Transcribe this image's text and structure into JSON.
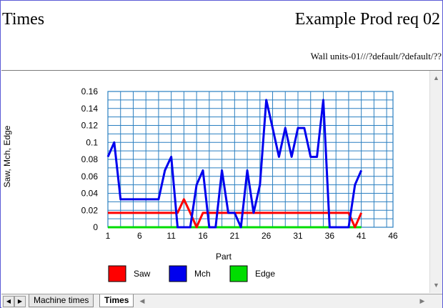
{
  "header": {
    "title_left": "Times",
    "title_right": "Example Prod req 02",
    "subtitle": "Wall units-01///?default/?default/??"
  },
  "tabs": [
    {
      "label": "Machine times",
      "active": false
    },
    {
      "label": "Times",
      "active": true
    }
  ],
  "colors": {
    "grid": "#2a7fc0",
    "saw": "#ff0000",
    "mch": "#0000ee",
    "edge": "#00dd00"
  },
  "chart_data": {
    "type": "line",
    "xlabel": "Part",
    "ylabel": "Saw, Mch, Edge",
    "xlim": [
      1,
      46
    ],
    "ylim": [
      0,
      0.16
    ],
    "xticks": [
      1,
      6,
      11,
      16,
      21,
      26,
      31,
      36,
      41,
      46
    ],
    "yticks": [
      0,
      0.02,
      0.04,
      0.06,
      0.08,
      0.1,
      0.12,
      0.14,
      0.16
    ],
    "ytick_labels": [
      "0",
      "0.02",
      "0.04",
      "0.06",
      "0.08",
      "0.1",
      "0.12",
      "0.14",
      "0.16"
    ],
    "grid": true,
    "legend_position": "bottom",
    "x": [
      1,
      2,
      3,
      4,
      5,
      6,
      7,
      8,
      9,
      10,
      11,
      12,
      13,
      14,
      15,
      16,
      17,
      18,
      19,
      20,
      21,
      22,
      23,
      24,
      25,
      26,
      27,
      28,
      29,
      30,
      31,
      32,
      33,
      34,
      35,
      36,
      37,
      38,
      39,
      40,
      41
    ],
    "series": [
      {
        "name": "Saw",
        "color": "#ff0000",
        "values": [
          0.017,
          0.017,
          0.017,
          0.017,
          0.017,
          0.017,
          0.017,
          0.017,
          0.017,
          0.017,
          0.017,
          0.017,
          0.033,
          0.017,
          0,
          0.017,
          0.017,
          0.017,
          0.017,
          0.017,
          0.017,
          0.017,
          0.017,
          0.017,
          0.017,
          0.017,
          0.017,
          0.017,
          0.017,
          0.017,
          0.017,
          0.017,
          0.017,
          0.017,
          0.017,
          0.017,
          0.017,
          0.017,
          0.017,
          0,
          0.017
        ]
      },
      {
        "name": "Mch",
        "color": "#0000ee",
        "values": [
          0.083,
          0.1,
          0.033,
          0.033,
          0.033,
          0.033,
          0.033,
          0.033,
          0.033,
          0.067,
          0.083,
          0,
          0,
          0,
          0.05,
          0.067,
          0,
          0,
          0.067,
          0.017,
          0.017,
          0,
          0.067,
          0.017,
          0.05,
          0.15,
          0.117,
          0.083,
          0.117,
          0.083,
          0.117,
          0.117,
          0.083,
          0.083,
          0.15,
          0,
          0,
          0,
          0,
          0.05,
          0.067
        ]
      },
      {
        "name": "Edge",
        "color": "#00dd00",
        "values": [
          0,
          0,
          0,
          0,
          0,
          0,
          0,
          0,
          0,
          0,
          0,
          0,
          0,
          0,
          0,
          0,
          0,
          0,
          0,
          0,
          0,
          0,
          0,
          0,
          0,
          0,
          0,
          0,
          0,
          0,
          0,
          0,
          0,
          0,
          0,
          0,
          0,
          0,
          0,
          0,
          0
        ]
      }
    ]
  }
}
